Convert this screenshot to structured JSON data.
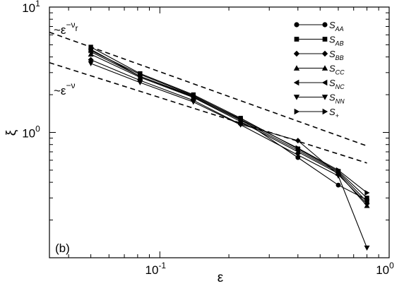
{
  "chart_data": {
    "type": "line",
    "xlabel": "ε",
    "ylabel": "ξ",
    "xscale": "log",
    "yscale": "log",
    "xlim": [
      0.033,
      1.0
    ],
    "ylim": [
      0.1,
      10.0
    ],
    "grid": false,
    "legend_position": "top-right",
    "panel_label": "(b)",
    "x_ticks": [
      {
        "value": 0.1,
        "base": "10",
        "exp": "-1"
      },
      {
        "value": 1.0,
        "base": "10",
        "exp": "0"
      }
    ],
    "y_ticks": [
      {
        "value": 1.0,
        "base": "10",
        "exp": "0"
      },
      {
        "value": 10.0,
        "base": "10",
        "exp": "1"
      }
    ],
    "series": [
      {
        "name_main": "S",
        "name_sub": "AA",
        "marker": "circle",
        "x": [
          0.05,
          0.082,
          0.14,
          0.225,
          0.4,
          0.6,
          0.8
        ],
        "y": [
          4.6,
          2.8,
          1.95,
          1.28,
          0.63,
          0.38,
          0.29
        ]
      },
      {
        "name_main": "S",
        "name_sub": "AB",
        "marker": "square",
        "x": [
          0.05,
          0.082,
          0.14,
          0.225,
          0.4,
          0.6,
          0.8
        ],
        "y": [
          4.8,
          2.95,
          2.0,
          1.3,
          0.74,
          0.49,
          0.3
        ]
      },
      {
        "name_main": "S",
        "name_sub": "BB",
        "marker": "diamond",
        "x": [
          0.05,
          0.082,
          0.14,
          0.225,
          0.4,
          0.6,
          0.8
        ],
        "y": [
          3.8,
          2.6,
          1.8,
          1.16,
          0.86,
          0.46,
          0.27
        ]
      },
      {
        "name_main": "S",
        "name_sub": "CC",
        "marker": "triangle-up",
        "x": [
          0.05,
          0.082,
          0.14,
          0.225,
          0.4,
          0.6,
          0.8
        ],
        "y": [
          4.2,
          2.75,
          1.9,
          1.22,
          0.7,
          0.47,
          0.26
        ]
      },
      {
        "name_main": "S",
        "name_sub": "NC",
        "marker": "triangle-left",
        "x": [
          0.05,
          0.082,
          0.14,
          0.225,
          0.4,
          0.6,
          0.8
        ],
        "y": [
          4.4,
          2.8,
          1.92,
          1.25,
          0.72,
          0.48,
          0.28
        ]
      },
      {
        "name_main": "S",
        "name_sub": "NN",
        "marker": "triangle-down",
        "x": [
          0.05,
          0.082,
          0.14,
          0.225,
          0.4,
          0.6,
          0.8
        ],
        "y": [
          3.55,
          2.5,
          1.75,
          1.15,
          0.66,
          0.45,
          0.12
        ]
      },
      {
        "name_main": "S",
        "name_sub": "+",
        "marker": "triangle-right",
        "x": [
          0.05,
          0.082,
          0.14,
          0.225,
          0.4,
          0.6,
          0.8
        ],
        "y": [
          4.5,
          2.9,
          1.97,
          1.27,
          0.75,
          0.5,
          0.33
        ]
      }
    ],
    "reference_lines": [
      {
        "id": "nu-r",
        "label_main": "~ε",
        "label_sup": "−ν",
        "label_sub": "r",
        "x": [
          0.033,
          0.8
        ],
        "y": [
          6.3,
          0.78
        ]
      },
      {
        "id": "nu",
        "label_main": "~ε",
        "label_sup": "−ν",
        "label_sub": "",
        "x": [
          0.033,
          0.8
        ],
        "y": [
          3.6,
          0.57
        ]
      }
    ]
  }
}
